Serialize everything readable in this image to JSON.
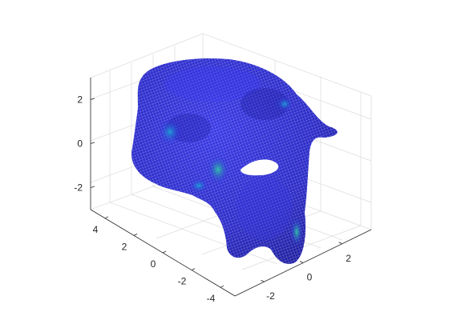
{
  "chart_data": {
    "type": "surface",
    "title": "",
    "xlabel": "",
    "ylabel": "",
    "zlabel": "",
    "x_ticks": [
      -2,
      0,
      2
    ],
    "y_ticks": [
      -4,
      -2,
      0,
      2,
      4
    ],
    "z_ticks": [
      -2,
      0,
      2
    ],
    "x_tick_labels": [
      "-2",
      "0",
      "2"
    ],
    "y_tick_labels": [
      "-4",
      "-2",
      "0",
      "2",
      "4"
    ],
    "z_tick_labels": [
      "-2",
      "0",
      "2"
    ],
    "xlim": [
      -3.5,
      3.5
    ],
    "ylim": [
      -5,
      5
    ],
    "zlim": [
      -3,
      3
    ],
    "grid": true,
    "legend": "none",
    "colormap": "parula",
    "surface_base_color": "#2b2bd6",
    "highlight_color": "#28b8a8"
  }
}
